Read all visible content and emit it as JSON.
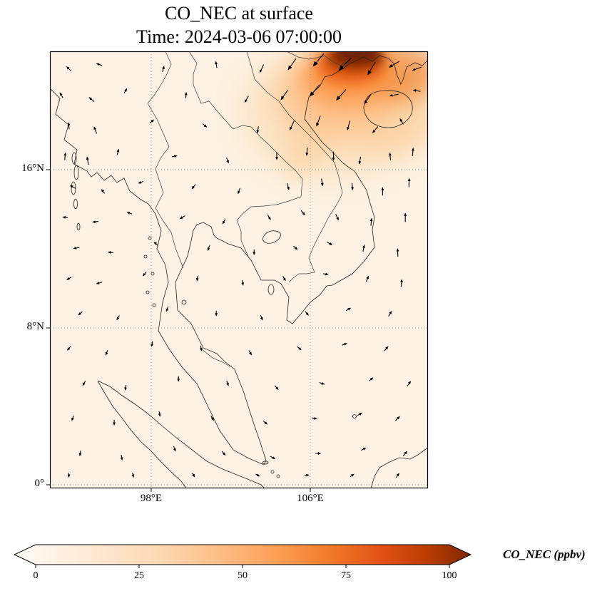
{
  "title": {
    "line1": "CO_NEC at surface",
    "line2": "Time: 2024-03-06 07:00:00"
  },
  "axes": {
    "y_ticks": [
      "16°N",
      "8°N",
      "0°"
    ],
    "x_ticks": [
      "98°E",
      "106°E"
    ]
  },
  "colorbar": {
    "label": "CO_NEC (ppbv)",
    "ticks": [
      "0",
      "25",
      "50",
      "75",
      "100"
    ]
  },
  "chart_data": {
    "type": "heatmap",
    "title": "CO_NEC at surface",
    "subtitle": "Time: 2024-03-06 07:00:00",
    "variable": "CO_NEC",
    "units": "ppbv",
    "region": "Indochina / Gulf of Thailand map panel with coastlines and country borders",
    "colorbar": {
      "min": 0,
      "max": 100,
      "ticks": [
        0,
        25,
        50,
        75,
        100
      ],
      "label": "CO_NEC (ppbv)",
      "extend": "both",
      "colormap": "Oranges",
      "colormap_colors": [
        "#fff5eb",
        "#fee8d3",
        "#fdd8b3",
        "#fdbe85",
        "#fd9e53",
        "#f07726",
        "#e05015",
        "#b83c02",
        "#7f2704"
      ]
    },
    "x_axis": {
      "tick_labels": [
        "98°E",
        "106°E"
      ],
      "gridlines": true
    },
    "y_axis": {
      "tick_labels": [
        "16°N",
        "8°N",
        "0°"
      ],
      "gridlines": true
    },
    "field_summary": {
      "background_value_ppbv": "0-10",
      "hotspot": "Dark-red plume (>= 100 ppbv) at top-right of domain (far northern Vietnam / Gulf of Tonkin area), fading south-west along the coast",
      "peak_value_ppbv": ">=100"
    },
    "wind_vectors": {
      "style": "black quiver arrows; strongest (longest, SW-pointing) inside the plume at top-right",
      "arrows": [
        [
          0.05,
          0.04,
          135,
          10
        ],
        [
          0.13,
          0.03,
          160,
          9
        ],
        [
          0.3,
          0.04,
          75,
          9
        ],
        [
          0.44,
          0.03,
          100,
          10
        ],
        [
          0.56,
          0.04,
          245,
          13
        ],
        [
          0.64,
          0.03,
          235,
          20
        ],
        [
          0.71,
          0.02,
          230,
          24
        ],
        [
          0.78,
          0.03,
          225,
          25
        ],
        [
          0.85,
          0.04,
          240,
          21
        ],
        [
          0.91,
          0.03,
          210,
          17
        ],
        [
          0.97,
          0.04,
          200,
          14
        ],
        [
          0.03,
          0.1,
          120,
          9
        ],
        [
          0.11,
          0.11,
          140,
          10
        ],
        [
          0.2,
          0.09,
          60,
          8
        ],
        [
          0.36,
          0.1,
          85,
          9
        ],
        [
          0.52,
          0.11,
          240,
          11
        ],
        [
          0.62,
          0.1,
          235,
          18
        ],
        [
          0.7,
          0.09,
          230,
          22
        ],
        [
          0.77,
          0.1,
          228,
          21
        ],
        [
          0.84,
          0.11,
          235,
          17
        ],
        [
          0.91,
          0.1,
          190,
          13
        ],
        [
          0.97,
          0.09,
          170,
          11
        ],
        [
          0.05,
          0.17,
          95,
          10
        ],
        [
          0.12,
          0.18,
          110,
          11
        ],
        [
          0.27,
          0.16,
          40,
          8
        ],
        [
          0.41,
          0.17,
          320,
          8
        ],
        [
          0.55,
          0.18,
          260,
          10
        ],
        [
          0.64,
          0.17,
          245,
          15
        ],
        [
          0.71,
          0.16,
          250,
          16
        ],
        [
          0.79,
          0.17,
          255,
          14
        ],
        [
          0.86,
          0.18,
          230,
          12
        ],
        [
          0.93,
          0.16,
          120,
          10
        ],
        [
          0.04,
          0.24,
          85,
          11
        ],
        [
          0.1,
          0.25,
          100,
          12
        ],
        [
          0.18,
          0.23,
          75,
          9
        ],
        [
          0.33,
          0.24,
          10,
          8
        ],
        [
          0.47,
          0.25,
          290,
          9
        ],
        [
          0.6,
          0.24,
          270,
          11
        ],
        [
          0.68,
          0.23,
          265,
          12
        ],
        [
          0.75,
          0.24,
          270,
          13
        ],
        [
          0.82,
          0.25,
          260,
          11
        ],
        [
          0.9,
          0.24,
          95,
          11
        ],
        [
          0.96,
          0.23,
          85,
          12
        ],
        [
          0.06,
          0.31,
          150,
          9
        ],
        [
          0.14,
          0.32,
          130,
          8
        ],
        [
          0.24,
          0.3,
          200,
          8
        ],
        [
          0.38,
          0.31,
          230,
          9
        ],
        [
          0.5,
          0.32,
          250,
          9
        ],
        [
          0.63,
          0.31,
          285,
          10
        ],
        [
          0.72,
          0.3,
          280,
          11
        ],
        [
          0.8,
          0.31,
          275,
          10
        ],
        [
          0.88,
          0.32,
          90,
          12
        ],
        [
          0.95,
          0.3,
          88,
          13
        ],
        [
          0.04,
          0.38,
          170,
          8
        ],
        [
          0.12,
          0.39,
          185,
          9
        ],
        [
          0.21,
          0.37,
          160,
          8
        ],
        [
          0.35,
          0.38,
          210,
          9
        ],
        [
          0.46,
          0.39,
          240,
          8
        ],
        [
          0.58,
          0.38,
          300,
          9
        ],
        [
          0.67,
          0.37,
          310,
          9
        ],
        [
          0.76,
          0.38,
          295,
          10
        ],
        [
          0.85,
          0.39,
          85,
          11
        ],
        [
          0.94,
          0.38,
          90,
          13
        ],
        [
          0.07,
          0.45,
          190,
          9
        ],
        [
          0.16,
          0.46,
          175,
          8
        ],
        [
          0.28,
          0.44,
          140,
          8
        ],
        [
          0.42,
          0.45,
          250,
          9
        ],
        [
          0.54,
          0.46,
          270,
          8
        ],
        [
          0.65,
          0.45,
          320,
          8
        ],
        [
          0.74,
          0.44,
          330,
          9
        ],
        [
          0.83,
          0.45,
          80,
          10
        ],
        [
          0.92,
          0.46,
          92,
          12
        ],
        [
          0.05,
          0.52,
          210,
          8
        ],
        [
          0.13,
          0.53,
          195,
          9
        ],
        [
          0.25,
          0.51,
          230,
          8
        ],
        [
          0.39,
          0.52,
          260,
          8
        ],
        [
          0.51,
          0.53,
          280,
          8
        ],
        [
          0.62,
          0.52,
          300,
          8
        ],
        [
          0.73,
          0.51,
          350,
          8
        ],
        [
          0.84,
          0.52,
          70,
          9
        ],
        [
          0.93,
          0.53,
          85,
          11
        ],
        [
          0.08,
          0.6,
          220,
          8
        ],
        [
          0.18,
          0.61,
          240,
          8
        ],
        [
          0.31,
          0.59,
          250,
          8
        ],
        [
          0.44,
          0.6,
          270,
          8
        ],
        [
          0.56,
          0.61,
          290,
          8
        ],
        [
          0.68,
          0.6,
          310,
          8
        ],
        [
          0.79,
          0.59,
          30,
          8
        ],
        [
          0.9,
          0.6,
          60,
          9
        ],
        [
          0.05,
          0.68,
          230,
          8
        ],
        [
          0.15,
          0.69,
          250,
          8
        ],
        [
          0.27,
          0.67,
          260,
          8
        ],
        [
          0.4,
          0.68,
          280,
          8
        ],
        [
          0.53,
          0.69,
          300,
          8
        ],
        [
          0.66,
          0.68,
          320,
          8
        ],
        [
          0.78,
          0.67,
          20,
          8
        ],
        [
          0.89,
          0.68,
          50,
          9
        ],
        [
          0.09,
          0.76,
          240,
          8
        ],
        [
          0.2,
          0.77,
          260,
          8
        ],
        [
          0.34,
          0.75,
          270,
          8
        ],
        [
          0.47,
          0.76,
          290,
          8
        ],
        [
          0.6,
          0.77,
          310,
          8
        ],
        [
          0.72,
          0.76,
          340,
          8
        ],
        [
          0.85,
          0.75,
          40,
          8
        ],
        [
          0.95,
          0.76,
          55,
          9
        ],
        [
          0.06,
          0.84,
          250,
          8
        ],
        [
          0.17,
          0.85,
          270,
          8
        ],
        [
          0.29,
          0.83,
          280,
          8
        ],
        [
          0.43,
          0.84,
          300,
          8
        ],
        [
          0.57,
          0.85,
          320,
          8
        ],
        [
          0.7,
          0.84,
          350,
          8
        ],
        [
          0.82,
          0.83,
          30,
          8
        ],
        [
          0.92,
          0.84,
          45,
          9
        ],
        [
          0.08,
          0.92,
          260,
          8
        ],
        [
          0.19,
          0.93,
          280,
          8
        ],
        [
          0.33,
          0.91,
          290,
          8
        ],
        [
          0.46,
          0.92,
          310,
          8
        ],
        [
          0.59,
          0.93,
          330,
          8
        ],
        [
          0.71,
          0.92,
          0,
          8
        ],
        [
          0.83,
          0.91,
          25,
          8
        ],
        [
          0.94,
          0.92,
          50,
          9
        ],
        [
          0.05,
          0.97,
          270,
          7
        ],
        [
          0.22,
          0.97,
          285,
          7
        ],
        [
          0.38,
          0.97,
          300,
          7
        ],
        [
          0.55,
          0.97,
          330,
          7
        ],
        [
          0.68,
          0.97,
          10,
          7
        ],
        [
          0.8,
          0.97,
          35,
          7
        ],
        [
          0.92,
          0.97,
          55,
          8
        ]
      ]
    }
  }
}
